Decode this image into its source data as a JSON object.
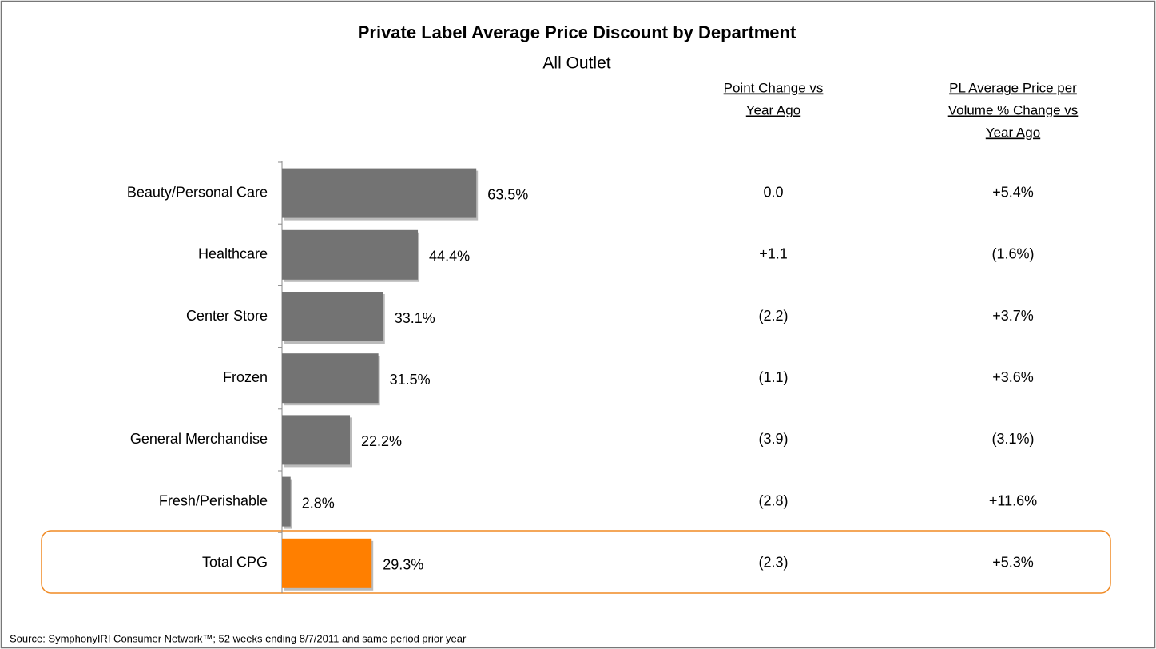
{
  "chart_data": {
    "type": "bar",
    "orientation": "horizontal",
    "title": "Private Label Average Price Discount by Department",
    "subtitle": "All Outlet",
    "categories": [
      "Beauty/Personal Care",
      "Healthcare",
      "Center Store",
      "Frozen",
      "General Merchandise",
      "Fresh/Perishable",
      "Total CPG"
    ],
    "values": [
      63.5,
      44.4,
      33.1,
      31.5,
      22.2,
      2.8,
      29.3
    ],
    "value_labels": [
      "63.5%",
      "44.4%",
      "33.1%",
      "31.5%",
      "22.2%",
      "2.8%",
      "29.3%"
    ],
    "colors": [
      "#737373",
      "#737373",
      "#737373",
      "#737373",
      "#737373",
      "#737373",
      "#ff7f00"
    ],
    "columns": [
      {
        "header": [
          "Point Change vs",
          "Year Ago"
        ],
        "values": [
          "0.0",
          "+1.1",
          "(2.2)",
          "(1.1)",
          "(3.9)",
          "(2.8)",
          "(2.3)"
        ]
      },
      {
        "header": [
          "PL Average Price per",
          "Volume % Change vs",
          "Year Ago"
        ],
        "values": [
          "+5.4%",
          "(1.6%)",
          "+3.7%",
          "+3.6%",
          "(3.1%)",
          "+11.6%",
          "+5.3%"
        ]
      }
    ],
    "source": "Source:  SymphonyIRI Consumer Network™; 52 weeks ending 8/7/2011 and same period prior year"
  }
}
